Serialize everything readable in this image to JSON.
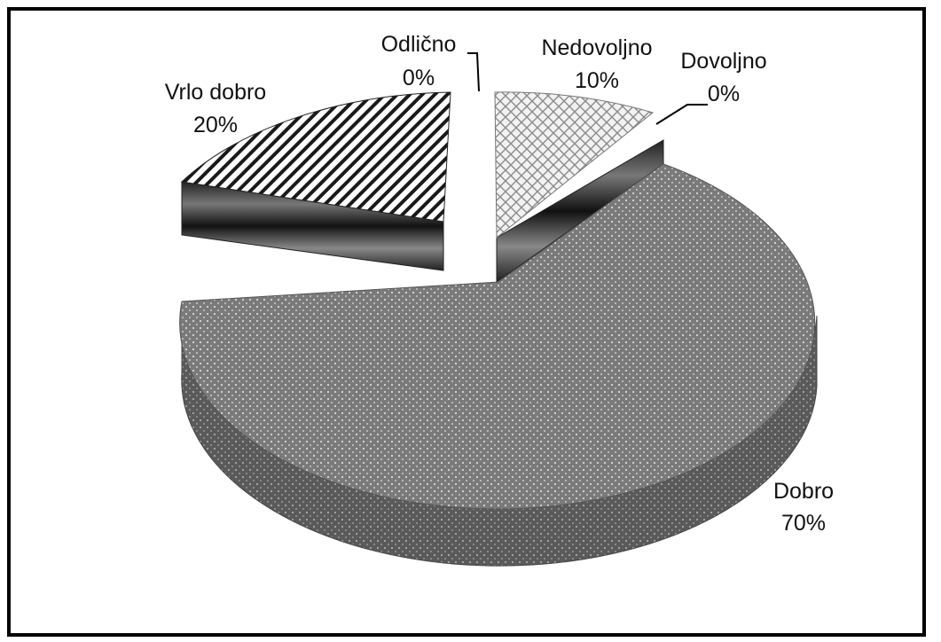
{
  "chart_data": {
    "type": "pie",
    "style": "3d-exploded",
    "title": "",
    "slices": [
      {
        "label": "Nedovoljno",
        "percent_label": "10%",
        "value": 10,
        "pattern": "diamond-lattice"
      },
      {
        "label": "Dovoljno",
        "percent_label": "0%",
        "value": 0,
        "pattern": "dark-stripes"
      },
      {
        "label": "Dobro",
        "percent_label": "70%",
        "value": 70,
        "pattern": "grey-dots"
      },
      {
        "label": "Vrlo dobro",
        "percent_label": "20%",
        "value": 20,
        "pattern": "diagonal-hatch"
      },
      {
        "label": "Odlično",
        "percent_label": "0%",
        "value": 0,
        "pattern": "none"
      }
    ],
    "legend": "none",
    "data_labels": "category-and-percent"
  }
}
